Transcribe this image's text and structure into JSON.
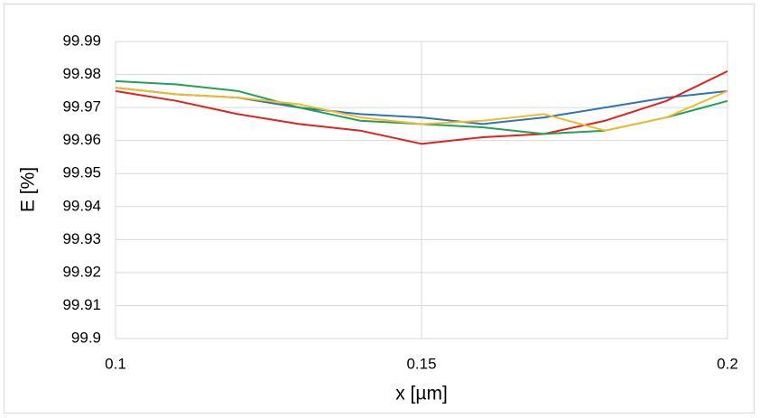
{
  "chart_data": {
    "type": "line",
    "x_label": "x [µm]",
    "y_label": "E [%]",
    "x": [
      0.1,
      0.11,
      0.12,
      0.13,
      0.14,
      0.15,
      0.16,
      0.17,
      0.18,
      0.19,
      0.2
    ],
    "series": [
      {
        "color": "#2e75b6",
        "values": [
          99.976,
          99.974,
          99.973,
          99.97,
          99.968,
          99.967,
          99.965,
          99.967,
          99.97,
          99.973,
          99.975
        ]
      },
      {
        "color": "#e3211c",
        "values": [
          99.975,
          99.972,
          99.968,
          99.965,
          99.963,
          99.959,
          99.961,
          99.962,
          99.966,
          99.972,
          99.981
        ]
      },
      {
        "color": "#1fa350",
        "values": [
          99.978,
          99.977,
          99.975,
          99.97,
          99.966,
          99.965,
          99.964,
          99.962,
          99.963,
          99.967,
          99.972
        ]
      },
      {
        "color": "#f2ba2c",
        "values": [
          99.976,
          99.974,
          99.973,
          99.971,
          99.967,
          99.965,
          99.966,
          99.968,
          99.963,
          99.967,
          99.975
        ]
      }
    ],
    "xlim": [
      0.1,
      0.2
    ],
    "xticks": [
      0.1,
      0.15,
      0.2
    ],
    "ylim": [
      99.9,
      99.99
    ],
    "yticks": [
      99.9,
      99.91,
      99.92,
      99.93,
      99.94,
      99.95,
      99.96,
      99.97,
      99.98,
      99.99
    ],
    "grid": true
  }
}
